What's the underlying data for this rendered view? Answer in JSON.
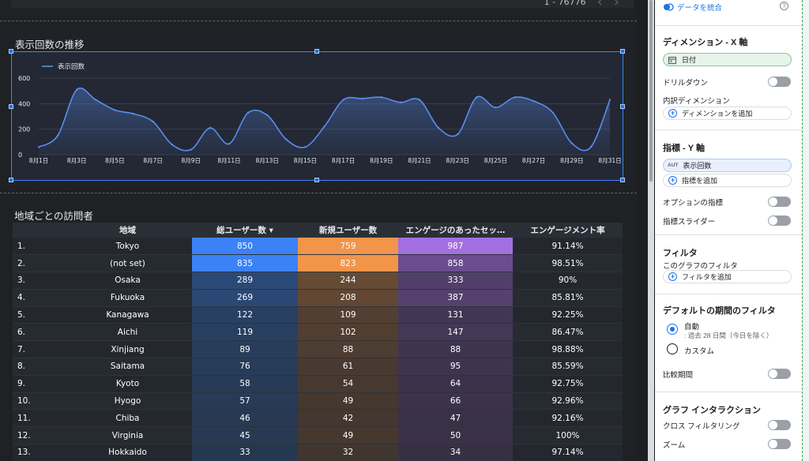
{
  "top_bar": {
    "pager_text": "1 - 76776",
    "prev_icon": "‹",
    "next_icon": "›"
  },
  "line_chart": {
    "title": "表示回数の推移",
    "legend_label": "表示回数",
    "series_color": "#5b8def"
  },
  "chart_data": [
    {
      "type": "area",
      "title": "表示回数の推移",
      "series": [
        {
          "name": "表示回数",
          "x": [
            "8月1日",
            "8月2日",
            "8月3日",
            "8月4日",
            "8月5日",
            "8月6日",
            "8月7日",
            "8月8日",
            "8月9日",
            "8月10日",
            "8月11日",
            "8月12日",
            "8月13日",
            "8月14日",
            "8月15日",
            "8月16日",
            "8月17日",
            "8月18日",
            "8月19日",
            "8月20日",
            "8月21日",
            "8月22日",
            "8月23日",
            "8月24日",
            "8月25日",
            "8月26日",
            "8月27日",
            "8月28日",
            "8月29日",
            "8月30日",
            "8月31日"
          ],
          "values": [
            60,
            150,
            510,
            430,
            350,
            320,
            260,
            80,
            40,
            210,
            85,
            330,
            310,
            120,
            60,
            220,
            430,
            440,
            450,
            410,
            430,
            210,
            160,
            450,
            370,
            450,
            420,
            330,
            90,
            60,
            430
          ]
        }
      ],
      "x_tick_labels": [
        "8月1日",
        "8月3日",
        "8月5日",
        "8月7日",
        "8月9日",
        "8月11日",
        "8月13日",
        "8月15日",
        "8月17日",
        "8月19日",
        "8月21日",
        "8月23日",
        "8月25日",
        "8月27日",
        "8月29日",
        "8月31日"
      ],
      "y_ticks": [
        0,
        200,
        400,
        600
      ],
      "ylim": [
        0,
        600
      ],
      "legend": "top-left",
      "grid": true
    },
    {
      "type": "table",
      "title": "地域ごとの訪問者",
      "columns": [
        "",
        "地域",
        "総ユーザー数 ▾",
        "新規ユーザー数",
        "エンゲージのあったセッ…",
        "エンゲージメント率"
      ],
      "rows": [
        [
          "1.",
          "Tokyo",
          "850",
          "759",
          "987",
          "91.14%"
        ],
        [
          "2.",
          "(not set)",
          "835",
          "823",
          "858",
          "98.51%"
        ],
        [
          "3.",
          "Osaka",
          "289",
          "244",
          "333",
          "90%"
        ],
        [
          "4.",
          "Fukuoka",
          "269",
          "208",
          "387",
          "85.81%"
        ],
        [
          "5.",
          "Kanagawa",
          "122",
          "109",
          "131",
          "92.25%"
        ],
        [
          "6.",
          "Aichi",
          "119",
          "102",
          "147",
          "86.47%"
        ],
        [
          "7.",
          "Xinjiang",
          "89",
          "88",
          "88",
          "98.88%"
        ],
        [
          "8.",
          "Saitama",
          "76",
          "61",
          "95",
          "85.59%"
        ],
        [
          "9.",
          "Kyoto",
          "58",
          "54",
          "64",
          "92.75%"
        ],
        [
          "10.",
          "Hyogo",
          "57",
          "49",
          "66",
          "92.96%"
        ],
        [
          "11.",
          "Chiba",
          "46",
          "42",
          "47",
          "92.16%"
        ],
        [
          "12.",
          "Virginia",
          "45",
          "49",
          "50",
          "100%"
        ],
        [
          "13.",
          "Hokkaido",
          "33",
          "32",
          "34",
          "97.14%"
        ]
      ],
      "heat_colors": [
        "#3b82f6",
        "#f0954a",
        "#a46fe0"
      ]
    }
  ],
  "props": {
    "blend_label": "データを統合",
    "dimension_title": "ディメンション - X 軸",
    "dimension_chip": "日付",
    "drilldown_label": "ドリルダウン",
    "breakdown_label": "内訳ディメンション",
    "add_dimension": "ディメンションを追加",
    "metric_title": "指標 - Y 軸",
    "metric_badge": "AUT",
    "metric_chip": "表示回数",
    "add_metric": "指標を追加",
    "optional_metrics": "オプションの指標",
    "metric_slider": "指標スライダー",
    "filter_title": "フィルタ",
    "filter_sub": "このグラフのフィルタ",
    "add_filter": "フィルタを追加",
    "date_filter_title": "デフォルトの期間のフィルタ",
    "auto_label": "自動",
    "auto_sub": ": 過去 28 日間（今日を除く）",
    "custom_label": "カスタム",
    "compare_label": "比較期間",
    "interaction_title": "グラフ インタラクション",
    "cross_filter": "クロス フィルタリング",
    "zoom": "ズーム"
  }
}
